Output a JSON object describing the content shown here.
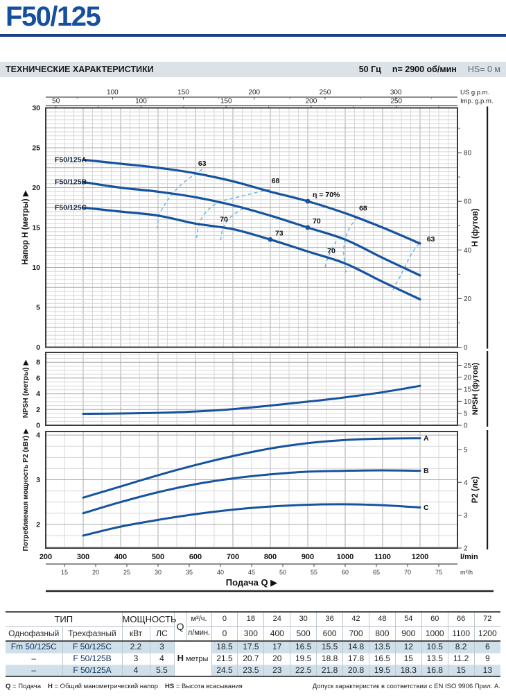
{
  "title": "F50/125",
  "spec_bar": {
    "title": "ТЕХНИЧЕСКИЕ ХАРАКТЕРИСТИКИ",
    "frequency": "50 Гц",
    "speed": "n= 2900  об/мин",
    "suction_head": "HS= 0 м"
  },
  "colors": {
    "title_blue": "#164f9e",
    "rule_navy": "#1b4184",
    "bar_bg": "#dbe2e8",
    "curve_blue": "#15539e",
    "efficiency_dash": "#62b0de",
    "table_shade": "#cfe0ea",
    "grid_minor": "#d7d7d7",
    "grid_major": "#a9a9a9",
    "frame": "#3b3b3b"
  },
  "chart_data": {
    "type": "line",
    "q_lmin": [
      300,
      400,
      500,
      600,
      700,
      800,
      900,
      1000,
      1100,
      1200
    ],
    "x_axes": {
      "xlabel": "Подача Q",
      "xlim_lmin": [
        200,
        1300
      ],
      "us_gpm": {
        "label": "US g.p.m.",
        "ticks": [
          100,
          150,
          200,
          250,
          300
        ],
        "minor_ticks": [
          75,
          125,
          175,
          225,
          275,
          325
        ],
        "lmin_per_unit": 3.785
      },
      "imp_gpm": {
        "label": "Imp. g.p.m.",
        "ticks": [
          50,
          100,
          150,
          200,
          250
        ],
        "minor_ticks": [
          75,
          125,
          175,
          225,
          275
        ],
        "lmin_per_unit": 4.546
      },
      "lmin": {
        "label": "l/min",
        "ticks": [
          200,
          300,
          400,
          500,
          600,
          700,
          800,
          900,
          1000,
          1100,
          1200
        ]
      },
      "m3h": {
        "label": "m³/h",
        "ticks": [
          15,
          20,
          25,
          30,
          35,
          40,
          45,
          50,
          55,
          60,
          65,
          70,
          75
        ],
        "lmin_per_unit": 16.667
      }
    },
    "head_chart": {
      "ylabel": "Напор H  (метры)",
      "ylabel_right": "H (футов)",
      "ylim": [
        0,
        30
      ],
      "yticks": [
        0,
        5,
        10,
        15,
        20,
        25,
        30
      ],
      "yticks_right_ft": [
        0,
        20,
        40,
        60,
        80
      ],
      "minor_ticks_right_ft": [
        10,
        30,
        50,
        70,
        90
      ],
      "m_per_ft": 0.3048,
      "series": [
        {
          "name": "F50/125A",
          "head_m": [
            23.5,
            23,
            22.5,
            21.8,
            20.8,
            19.5,
            18.3,
            16.8,
            15,
            13
          ]
        },
        {
          "name": "F50/125B",
          "head_m": [
            20.7,
            20,
            19.5,
            18.8,
            17.8,
            16.5,
            15,
            13.5,
            11.2,
            9
          ]
        },
        {
          "name": "F50/125C",
          "head_m": [
            17.5,
            17,
            16.5,
            15.5,
            14.8,
            13.5,
            12,
            10.5,
            8.2,
            6
          ]
        }
      ],
      "bep_markers": [
        {
          "series": 0,
          "q_lmin": 900,
          "label": "η = 70%"
        },
        {
          "series": 1,
          "q_lmin": 900,
          "label": "70"
        },
        {
          "series": 2,
          "q_lmin": 800,
          "label": "73"
        }
      ],
      "efficiency_labels": [
        {
          "text": "63",
          "q_lmin": 618,
          "h_m": 22.75,
          "anchor": "middle"
        },
        {
          "text": "68",
          "q_lmin": 814,
          "h_m": 20.55,
          "anchor": "middle"
        },
        {
          "text": "68",
          "q_lmin": 1048,
          "h_m": 17.15,
          "anchor": "middle"
        },
        {
          "text": "63",
          "q_lmin": 1218,
          "h_m": 13.25,
          "anchor": "start"
        },
        {
          "text": "70",
          "q_lmin": 676,
          "h_m": 15.75,
          "anchor": "middle"
        },
        {
          "text": "70",
          "q_lmin": 963,
          "h_m": 11.8,
          "anchor": "middle"
        }
      ],
      "efficiency_contours": [
        {
          "eta": 63,
          "points": [
            [
              618,
              22.3
            ],
            [
              570,
              20.7
            ],
            [
              538,
              19.2
            ],
            [
              513,
              17.5
            ],
            [
              502,
              16.3
            ],
            [
              498,
              14.9
            ]
          ]
        },
        {
          "eta": 68,
          "points": [
            [
              798,
              19.8
            ],
            [
              720,
              18.9
            ],
            [
              659,
              18.1
            ],
            [
              624,
              16.7
            ],
            [
              609,
              15.3
            ],
            [
              603,
              13.7
            ]
          ]
        },
        {
          "eta": 70,
          "points": [
            [
              727,
              17.4
            ],
            [
              696,
              16.4
            ],
            [
              679,
              15.4
            ],
            [
              671,
              14.5
            ],
            [
              667,
              13.3
            ]
          ]
        },
        {
          "eta": 68,
          "points": [
            [
              1031,
              16.3
            ],
            [
              1009,
              14.7
            ],
            [
              999,
              13.3
            ],
            [
              996,
              11.9
            ],
            [
              999,
              10.5
            ],
            [
              1002,
              9.4
            ]
          ]
        },
        {
          "eta": 70,
          "points": [
            [
              976,
              13.3
            ],
            [
              962,
              12.1
            ],
            [
              952,
              11.0
            ],
            [
              946,
              10.0
            ]
          ]
        },
        {
          "eta": 63,
          "points": [
            [
              1197,
              13.0
            ],
            [
              1177,
              11.7
            ],
            [
              1162,
              10.3
            ],
            [
              1147,
              8.9
            ],
            [
              1133,
              7.7
            ],
            [
              1124,
              6.8
            ]
          ]
        }
      ]
    },
    "npsh_chart": {
      "ylabel": "NPSH (метры)",
      "ylabel_right": "NPSH (футов)",
      "ylim": [
        0,
        9.25
      ],
      "yticks": [
        0,
        2,
        4,
        6,
        8
      ],
      "yticks_right_ft": [
        0,
        5,
        10,
        15,
        20,
        25
      ],
      "m_per_ft": 0.3048,
      "npsh_m": [
        1.45,
        1.5,
        1.58,
        1.75,
        2.05,
        2.5,
        3.0,
        3.55,
        4.2,
        5.0
      ]
    },
    "p2_chart": {
      "ylabel": "Потребляемая мощность  P2  (кВт)",
      "ylabel_right": "P2 (лс)",
      "ylim": [
        1.47,
        4.08
      ],
      "yticks": [
        2,
        3,
        4
      ],
      "yticks_right_hp": [
        2,
        3,
        4,
        5
      ],
      "kw_per_hp": 0.7355,
      "series": [
        {
          "name": "A",
          "p2_kw": [
            2.6,
            2.85,
            3.1,
            3.33,
            3.53,
            3.7,
            3.82,
            3.89,
            3.92,
            3.93
          ]
        },
        {
          "name": "B",
          "p2_kw": [
            2.25,
            2.5,
            2.72,
            2.9,
            3.03,
            3.12,
            3.18,
            3.2,
            3.21,
            3.2
          ]
        },
        {
          "name": "C",
          "p2_kw": [
            1.75,
            1.95,
            2.1,
            2.23,
            2.33,
            2.4,
            2.44,
            2.45,
            2.43,
            2.38
          ]
        }
      ]
    }
  },
  "table": {
    "group_type": "ТИП",
    "group_power": "МОЩНОСТЬ",
    "single_phase": "Однофазный",
    "three_phase": "Трехфазный",
    "kw": "кВт",
    "hp": "ЛС",
    "q_label": "Q",
    "unit_m3h": "м³/ч.",
    "unit_lmin": "л/мин.",
    "h_label": "H",
    "h_unit": "метры",
    "flow_m3h": [
      "0",
      "18",
      "24",
      "30",
      "36",
      "42",
      "48",
      "54",
      "60",
      "66",
      "72"
    ],
    "flow_lmin": [
      "0",
      "300",
      "400",
      "500",
      "600",
      "700",
      "800",
      "900",
      "1000",
      "1100",
      "1200"
    ],
    "rows": [
      {
        "single": "Fm 50/125C",
        "three": "F 50/125C",
        "kw": "2.2",
        "hp": "3",
        "head_m": [
          "18.5",
          "17.5",
          "17",
          "16.5",
          "15.5",
          "14.8",
          "13.5",
          "12",
          "10.5",
          "8.2",
          "6"
        ],
        "shaded": true
      },
      {
        "single": "–",
        "three": "F 50/125B",
        "kw": "3",
        "hp": "4",
        "head_m": [
          "21.5",
          "20.7",
          "20",
          "19.5",
          "18.8",
          "17.8",
          "16.5",
          "15",
          "13.5",
          "11.2",
          "9"
        ],
        "shaded": false
      },
      {
        "single": "–",
        "three": "F 50/125A",
        "kw": "4",
        "hp": "5.5",
        "head_m": [
          "24.5",
          "23.5",
          "23",
          "22.5",
          "21.8",
          "20.8",
          "19.5",
          "18.3",
          "16.8",
          "15",
          "13"
        ],
        "shaded": true
      }
    ]
  },
  "footer": {
    "legend": [
      {
        "key": "Q",
        "desc": "Подача"
      },
      {
        "key": "H",
        "desc": "Общий манометрический напор"
      },
      {
        "key": "HS",
        "desc": "Высота всасывания"
      }
    ],
    "note": "Допуск характеристик в соответствии с EN ISO 9906 Прил. A."
  }
}
